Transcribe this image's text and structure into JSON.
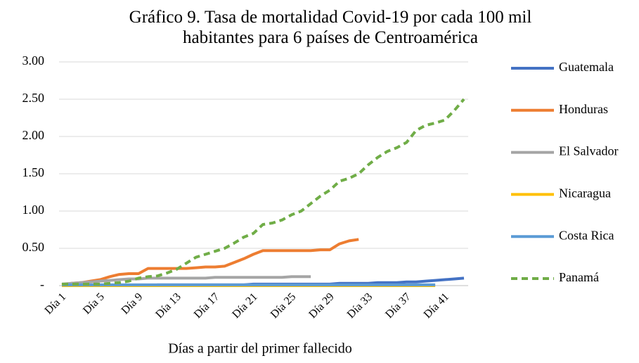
{
  "chart_data": {
    "type": "line",
    "title": "Gráfico 9. Tasa de mortalidad Covid-19 por cada 100 mil habitantes para 6 países de Centroamérica",
    "x_label": "Días a partir del primer fallecido",
    "categories": [
      "Día 1",
      null,
      null,
      null,
      "Día 5",
      null,
      null,
      null,
      "Día 9",
      null,
      null,
      null,
      "Día 13",
      null,
      null,
      null,
      "Día 17",
      null,
      null,
      null,
      "Día 21",
      null,
      null,
      null,
      "Día 25",
      null,
      null,
      null,
      "Día 29",
      null,
      null,
      null,
      "Día 33",
      null,
      null,
      null,
      "Día 37",
      null,
      null,
      null,
      "Día 41",
      null,
      null
    ],
    "ylim": [
      0,
      3
    ],
    "yticks": [
      {
        "value": 0,
        "label": "-"
      },
      {
        "value": 0.5,
        "label": "0.50"
      },
      {
        "value": 1,
        "label": "1.00"
      },
      {
        "value": 1.5,
        "label": "1.50"
      },
      {
        "value": 2,
        "label": "2.00"
      },
      {
        "value": 2.5,
        "label": "2.50"
      },
      {
        "value": 3,
        "label": "3.00"
      }
    ],
    "grid": true,
    "legend": "right",
    "series": [
      {
        "name": "Guatemala",
        "color": "#4472c4",
        "style": "solid",
        "values": [
          0,
          0,
          0,
          0,
          0,
          0,
          0,
          0,
          0,
          0,
          0.01,
          0.01,
          0.01,
          0.01,
          0.01,
          0.01,
          0.01,
          0.01,
          0.01,
          0.01,
          0.02,
          0.02,
          0.02,
          0.02,
          0.02,
          0.02,
          0.02,
          0.02,
          0.02,
          0.03,
          0.03,
          0.03,
          0.03,
          0.04,
          0.04,
          0.04,
          0.05,
          0.05,
          0.06,
          0.07,
          0.08,
          0.09,
          0.1
        ]
      },
      {
        "name": "Honduras",
        "color": "#ed7d31",
        "style": "solid",
        "values": [
          0.01,
          0.03,
          0.04,
          0.06,
          0.08,
          0.12,
          0.15,
          0.16,
          0.16,
          0.23,
          0.23,
          0.23,
          0.23,
          0.23,
          0.24,
          0.25,
          0.25,
          0.26,
          0.31,
          0.36,
          0.42,
          0.47,
          0.47,
          0.47,
          0.47,
          0.47,
          0.47,
          0.48,
          0.48,
          0.56,
          0.6,
          0.62,
          null,
          null,
          null,
          null,
          null,
          null,
          null,
          null,
          null,
          null,
          null
        ]
      },
      {
        "name": "El Salvador",
        "color": "#a5a5a5",
        "style": "solid",
        "values": [
          0.02,
          0.03,
          0.04,
          0.05,
          0.06,
          0.07,
          0.08,
          0.09,
          0.09,
          0.1,
          0.1,
          0.1,
          0.1,
          0.1,
          0.1,
          0.1,
          0.11,
          0.11,
          0.11,
          0.11,
          0.11,
          0.11,
          0.11,
          0.11,
          0.12,
          0.12,
          0.12,
          null,
          null,
          null,
          null,
          null,
          null,
          null,
          null,
          null,
          null,
          null,
          null,
          null,
          null,
          null,
          null
        ]
      },
      {
        "name": "Nicaragua",
        "color": "#ffc000",
        "style": "solid",
        "values": [
          0,
          0,
          0,
          0,
          0,
          0,
          0,
          0,
          0,
          0,
          0,
          0,
          0,
          0,
          0,
          0,
          0,
          0,
          0,
          0,
          0,
          0,
          0,
          0,
          0,
          0,
          0,
          0,
          0,
          0,
          0,
          0,
          0,
          0,
          0,
          0,
          0,
          0,
          0,
          0,
          null,
          null,
          null
        ]
      },
      {
        "name": "Costa Rica",
        "color": "#5b9bd5",
        "style": "solid",
        "values": [
          0.01,
          0.01,
          0.01,
          0.01,
          0.01,
          0.01,
          0.01,
          0.01,
          0.01,
          0.01,
          0.01,
          0.01,
          0.01,
          0.01,
          0.01,
          0.01,
          0.01,
          0.01,
          0.01,
          0.01,
          0.01,
          0.01,
          0.01,
          0.01,
          0.01,
          0.01,
          0.01,
          0.01,
          0.01,
          0.01,
          0.01,
          0.01,
          0.01,
          0.01,
          0.01,
          0.01,
          0.01,
          0.01,
          0.01,
          0.01,
          null,
          null,
          null
        ]
      },
      {
        "name": "Panamá",
        "color": "#70ad47",
        "style": "dashed",
        "values": [
          0.02,
          0.02,
          0.02,
          0.02,
          0.02,
          0.03,
          0.04,
          0.06,
          0.1,
          0.12,
          0.13,
          0.17,
          0.22,
          0.3,
          0.38,
          0.42,
          0.46,
          0.5,
          0.57,
          0.65,
          0.7,
          0.82,
          0.84,
          0.88,
          0.95,
          1.0,
          1.1,
          1.2,
          1.28,
          1.4,
          1.44,
          1.5,
          1.62,
          1.72,
          1.8,
          1.85,
          1.92,
          2.08,
          2.15,
          2.18,
          2.22,
          2.35,
          2.5
        ]
      }
    ]
  }
}
